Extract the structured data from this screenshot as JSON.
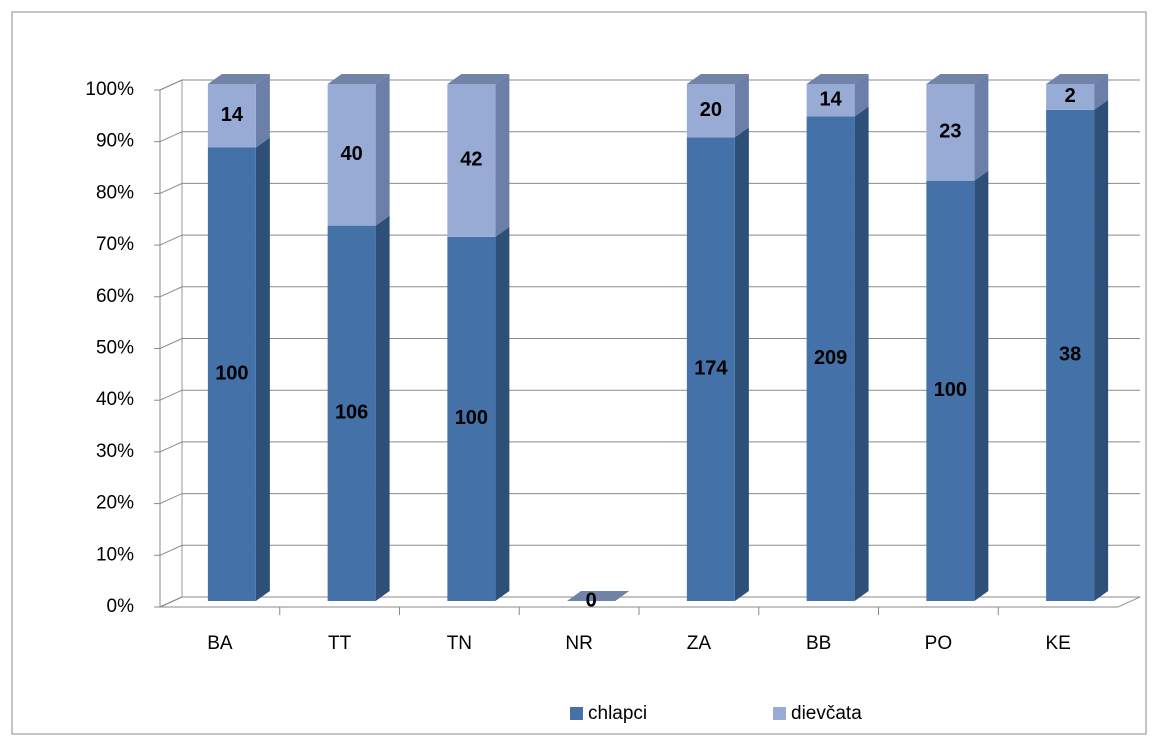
{
  "chart_data": {
    "type": "bar",
    "stacking": "percent",
    "categories": [
      "BA",
      "TT",
      "TN",
      "NR",
      "ZA",
      "BB",
      "PO",
      "KE"
    ],
    "series": [
      {
        "name": "chlapci",
        "color": "#4472a8",
        "values": [
          100,
          106,
          100,
          0,
          174,
          209,
          100,
          38
        ]
      },
      {
        "name": "dievčata",
        "color": "#97abd4",
        "values": [
          14,
          40,
          42,
          0,
          20,
          14,
          23,
          2
        ]
      }
    ],
    "ylim": [
      0,
      100
    ],
    "yticks": [
      {
        "value": 0,
        "label": "0%"
      },
      {
        "value": 10,
        "label": "10%"
      },
      {
        "value": 20,
        "label": "20%"
      },
      {
        "value": 30,
        "label": "30%"
      },
      {
        "value": 40,
        "label": "40%"
      },
      {
        "value": 50,
        "label": "50%"
      },
      {
        "value": 60,
        "label": "60%"
      },
      {
        "value": 70,
        "label": "70%"
      },
      {
        "value": 80,
        "label": "80%"
      },
      {
        "value": 90,
        "label": "90%"
      },
      {
        "value": 100,
        "label": "100%"
      }
    ],
    "grid": true,
    "legend": "bottom"
  }
}
